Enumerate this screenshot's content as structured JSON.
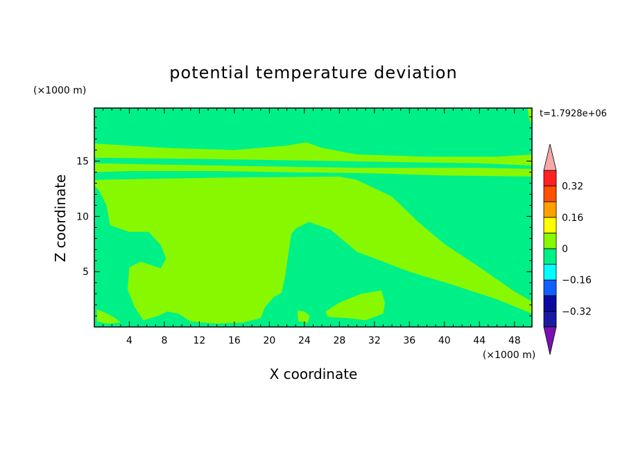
{
  "chart_data": {
    "type": "heatmap",
    "title": "potential temperature deviation",
    "xlabel": "X coordinate",
    "ylabel": "Z coordinate",
    "x_unit": "(×1000 m)",
    "y_unit": "(×1000 m)",
    "time_label": "t=1.7928e+06",
    "xlim": [
      0,
      50
    ],
    "ylim": [
      0,
      19.8
    ],
    "x_ticks": [
      4,
      8,
      12,
      16,
      20,
      24,
      28,
      32,
      36,
      40,
      44,
      48
    ],
    "y_ticks": [
      5,
      10,
      15
    ],
    "colorbar": {
      "levels": [
        -0.4,
        -0.32,
        -0.24,
        -0.16,
        -0.08,
        0,
        0.08,
        0.16,
        0.24,
        0.32,
        0.4
      ],
      "tick_labels": [
        {
          "value": 0.32,
          "label": "0.32"
        },
        {
          "value": 0.16,
          "label": "0.16"
        },
        {
          "value": 0,
          "label": "0"
        },
        {
          "value": -0.16,
          "label": "−0.16"
        },
        {
          "value": -0.32,
          "label": "−0.32"
        }
      ],
      "colors": [
        "#1a1aa0",
        "#0a0aa0",
        "#1060ff",
        "#00ffff",
        "#00f088",
        "#88f800",
        "#ffff00",
        "#ffa000",
        "#ff5000",
        "#ff2020"
      ],
      "over_color": "#f4a8a8",
      "under_color": "#7a10b0"
    },
    "field_colors": {
      "negative": "#00f088",
      "positive": "#88f800"
    },
    "regions": [
      {
        "sign": "positive",
        "polygon": [
          [
            0,
            16.6
          ],
          [
            8,
            16.2
          ],
          [
            16,
            16.0
          ],
          [
            22,
            16.4
          ],
          [
            24.2,
            16.7
          ],
          [
            26,
            16.2
          ],
          [
            30,
            15.6
          ],
          [
            38,
            15.4
          ],
          [
            46,
            15.4
          ],
          [
            50,
            15.6
          ],
          [
            50,
            14.6
          ],
          [
            44,
            14.8
          ],
          [
            36,
            14.9
          ],
          [
            28,
            15.0
          ],
          [
            20,
            15.1
          ],
          [
            12,
            15.2
          ],
          [
            0,
            15.3
          ]
        ]
      },
      {
        "sign": "positive",
        "polygon": [
          [
            0,
            14.8
          ],
          [
            14,
            14.6
          ],
          [
            30,
            14.4
          ],
          [
            44,
            14.4
          ],
          [
            50,
            14.3
          ],
          [
            50,
            13.6
          ],
          [
            40,
            13.7
          ],
          [
            32,
            13.9
          ],
          [
            22,
            14.0
          ],
          [
            14,
            14.1
          ],
          [
            4,
            14.1
          ],
          [
            0,
            14.0
          ]
        ]
      },
      {
        "sign": "positive",
        "polygon": [
          [
            0,
            13.3
          ],
          [
            14,
            13.5
          ],
          [
            28,
            13.6
          ],
          [
            30,
            13.3
          ],
          [
            34,
            11.8
          ],
          [
            37,
            9.5
          ],
          [
            40,
            7.5
          ],
          [
            44,
            5.4
          ],
          [
            48,
            3.2
          ],
          [
            50,
            2.3
          ],
          [
            50,
            1.2
          ],
          [
            46,
            2.5
          ],
          [
            41,
            3.8
          ],
          [
            36,
            5.0
          ],
          [
            33,
            5.9
          ],
          [
            30,
            6.8
          ],
          [
            27,
            8.8
          ],
          [
            24.5,
            9.5
          ],
          [
            23,
            8.9
          ],
          [
            22.5,
            8.4
          ],
          [
            21.8,
            4.6
          ],
          [
            21.4,
            3.1
          ],
          [
            20.5,
            2.7
          ],
          [
            19.5,
            1.8
          ],
          [
            19,
            0.8
          ],
          [
            17,
            0.4
          ],
          [
            14,
            0.3
          ],
          [
            11,
            0.5
          ],
          [
            9.6,
            1.2
          ],
          [
            8.3,
            1.4
          ],
          [
            7.3,
            1.0
          ],
          [
            5.6,
            0.6
          ],
          [
            4.6,
            1.8
          ],
          [
            3.8,
            3.4
          ],
          [
            4.0,
            5.4
          ],
          [
            5.3,
            5.9
          ],
          [
            7.6,
            5.3
          ],
          [
            8.2,
            6.2
          ],
          [
            7.6,
            7.4
          ],
          [
            6.2,
            8.6
          ],
          [
            4.0,
            8.6
          ],
          [
            1.8,
            9.2
          ],
          [
            1.4,
            11.0
          ],
          [
            0.5,
            12.4
          ],
          [
            0,
            12.8
          ]
        ]
      },
      {
        "sign": "positive",
        "polygon": [
          [
            26.4,
            1.4
          ],
          [
            28,
            2.2
          ],
          [
            30.5,
            3.0
          ],
          [
            32.8,
            3.3
          ],
          [
            33.2,
            2.2
          ],
          [
            33.0,
            1.2
          ],
          [
            31,
            0.6
          ],
          [
            29,
            0.8
          ],
          [
            26.7,
            0.9
          ]
        ]
      },
      {
        "sign": "positive",
        "polygon": [
          [
            23.2,
            1.5
          ],
          [
            24.0,
            1.4
          ],
          [
            24.6,
            1.0
          ],
          [
            24.4,
            0.4
          ],
          [
            23.3,
            0.5
          ]
        ]
      },
      {
        "sign": "positive",
        "polygon": [
          [
            0.3,
            1.6
          ],
          [
            1.2,
            1.3
          ],
          [
            2.4,
            0.8
          ],
          [
            3.0,
            0.4
          ],
          [
            1.5,
            0.3
          ],
          [
            0.3,
            0.5
          ]
        ]
      },
      {
        "sign": "positive",
        "polygon": [
          [
            49.5,
            19.8
          ],
          [
            50,
            19.8
          ],
          [
            50,
            18.2
          ],
          [
            49.6,
            19.0
          ]
        ]
      }
    ]
  }
}
